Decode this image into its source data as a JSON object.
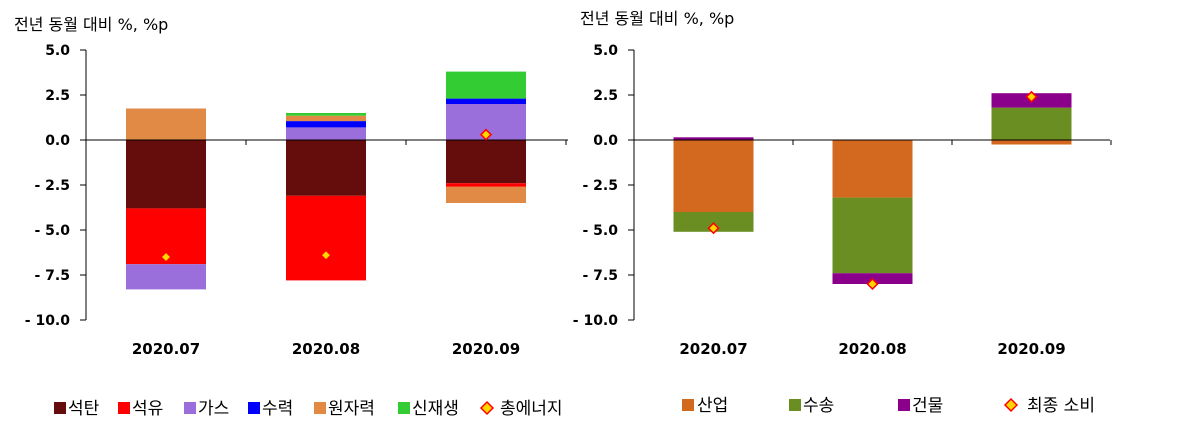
{
  "chart_data": [
    {
      "type": "bar",
      "stacked": true,
      "unit_label": "전년 동월 대비 %, %p",
      "ylim": [
        -10.0,
        5.0
      ],
      "yticks": [
        "5.0",
        "2.5",
        "0.0",
        "- 2.5",
        "- 5.0",
        "- 7.5",
        "- 10.0"
      ],
      "ytick_values": [
        5.0,
        2.5,
        0.0,
        -2.5,
        -5.0,
        -7.5,
        -10.0
      ],
      "categories": [
        "2020.07",
        "2020.08",
        "2020.09"
      ],
      "series": [
        {
          "name": "석탄",
          "color": "#650D0D",
          "values": [
            -3.8,
            -3.1,
            -2.4
          ]
        },
        {
          "name": "석유",
          "color": "#FF0000",
          "values": [
            -3.1,
            -4.7,
            -0.2
          ]
        },
        {
          "name": "가스",
          "color": "#9B6FDB",
          "values": [
            -1.4,
            0.7,
            2.0
          ]
        },
        {
          "name": "수력",
          "color": "#0000FF",
          "values": [
            0.0,
            0.35,
            0.3
          ]
        },
        {
          "name": "원자력",
          "color": "#E08A45",
          "values": [
            1.75,
            0.3,
            -0.9
          ]
        },
        {
          "name": "신재생",
          "color": "#33CC33",
          "values": [
            0.0,
            0.15,
            1.5
          ]
        }
      ],
      "marker_series": {
        "name": "총에너지",
        "values": [
          -6.5,
          -6.4,
          0.3
        ]
      },
      "legend_position": "bottom"
    },
    {
      "type": "bar",
      "stacked": true,
      "unit_label": "전년 동월 대비 %, %p",
      "ylim": [
        -10.0,
        5.0
      ],
      "yticks": [
        "5.0",
        "2.5",
        "0.0",
        "- 2.5",
        "- 5.0",
        "- 7.5",
        "- 10.0"
      ],
      "ytick_values": [
        5.0,
        2.5,
        0.0,
        -2.5,
        -5.0,
        -7.5,
        -10.0
      ],
      "categories": [
        "2020.07",
        "2020.08",
        "2020.09"
      ],
      "series": [
        {
          "name": "산업",
          "color": "#D2691E",
          "values": [
            -4.0,
            -3.2,
            -0.25
          ]
        },
        {
          "name": "수송",
          "color": "#6B8E23",
          "values": [
            -1.1,
            -4.2,
            1.8
          ]
        },
        {
          "name": "건물",
          "color": "#8B008B",
          "values": [
            0.15,
            -0.6,
            0.8
          ]
        }
      ],
      "marker_series": {
        "name": "최종 소비",
        "values": [
          -4.9,
          -8.0,
          2.4
        ]
      },
      "legend_position": "bottom"
    }
  ],
  "marker_style": {
    "fill": "#FFD700",
    "stroke": "#FF0000"
  }
}
